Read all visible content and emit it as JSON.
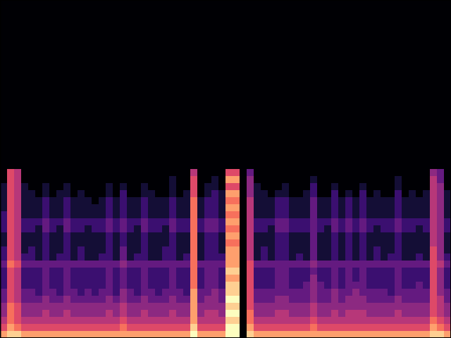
{
  "chart_data": {
    "type": "heatmap",
    "color": "magma",
    "tick_labels": false,
    "xlim": [
      0,
      64
    ],
    "ylim": [
      0,
      48
    ],
    "zlim": [
      0,
      10
    ],
    "x": [
      0,
      1,
      2,
      3,
      4,
      5,
      6,
      7,
      8,
      9,
      10,
      11,
      12,
      13,
      14,
      15,
      16,
      17,
      18,
      19,
      20,
      21,
      22,
      23,
      24,
      25,
      26,
      27,
      28,
      29,
      30,
      31,
      32,
      33,
      34,
      35,
      36,
      37,
      38,
      39,
      40,
      41,
      42,
      43,
      44,
      45,
      46,
      47,
      48,
      49,
      50,
      51,
      52,
      53,
      54,
      55,
      56,
      57,
      58,
      59,
      60,
      61,
      62,
      63
    ],
    "y": [
      23,
      22,
      21,
      20,
      19,
      18,
      17,
      16,
      15,
      14,
      13,
      12,
      11,
      10,
      9,
      8,
      7,
      6,
      5,
      4,
      3,
      2,
      1,
      0
    ],
    "cells": [
      [
        0,
        6,
        5,
        0,
        0,
        0,
        0,
        0,
        0,
        0,
        0,
        0,
        0,
        0,
        0,
        0,
        0,
        0,
        0,
        0,
        0,
        0,
        0,
        0,
        0,
        0,
        0,
        5,
        0,
        0,
        0,
        0,
        6,
        6,
        0,
        3,
        0,
        0,
        0,
        0,
        0,
        0,
        0,
        0,
        0,
        0,
        0,
        0,
        0,
        0,
        0,
        0,
        0,
        0,
        0,
        0,
        0,
        0,
        0,
        0,
        0,
        4,
        3,
        0
      ],
      [
        0,
        6,
        5,
        0,
        0,
        0,
        0,
        0,
        0,
        0,
        0,
        0,
        0,
        0,
        0,
        0,
        0,
        0,
        0,
        0,
        0,
        0,
        0,
        0,
        1,
        0,
        0,
        6,
        0,
        0,
        1,
        0,
        8,
        8,
        0,
        4,
        0,
        0,
        0,
        0,
        0,
        0,
        0,
        0,
        1,
        0,
        0,
        0,
        0,
        0,
        0,
        0,
        0,
        0,
        0,
        0,
        1,
        0,
        0,
        0,
        0,
        5,
        3,
        0
      ],
      [
        1,
        6,
        5,
        1,
        0,
        0,
        1,
        0,
        0,
        1,
        0,
        0,
        0,
        0,
        0,
        1,
        0,
        1,
        0,
        0,
        1,
        0,
        0,
        0,
        1,
        0,
        0,
        6,
        0,
        1,
        1,
        0,
        6,
        6,
        0,
        4,
        1,
        0,
        0,
        0,
        1,
        0,
        0,
        0,
        2,
        0,
        0,
        1,
        0,
        0,
        0,
        1,
        0,
        0,
        0,
        0,
        1,
        0,
        0,
        0,
        0,
        5,
        4,
        0
      ],
      [
        1,
        6,
        5,
        1,
        1,
        0,
        1,
        0,
        1,
        1,
        0,
        1,
        0,
        0,
        0,
        1,
        0,
        2,
        0,
        0,
        1,
        1,
        0,
        0,
        1,
        0,
        1,
        6,
        0,
        1,
        2,
        1,
        8,
        8,
        0,
        4,
        1,
        1,
        0,
        1,
        1,
        0,
        0,
        1,
        2,
        0,
        0,
        2,
        0,
        1,
        0,
        2,
        0,
        1,
        0,
        0,
        2,
        0,
        1,
        0,
        1,
        5,
        4,
        1
      ],
      [
        1,
        6,
        5,
        1,
        1,
        1,
        2,
        1,
        1,
        2,
        1,
        1,
        1,
        0,
        1,
        2,
        1,
        2,
        1,
        1,
        2,
        1,
        1,
        1,
        2,
        1,
        1,
        7,
        1,
        2,
        2,
        1,
        7,
        7,
        0,
        5,
        1,
        1,
        1,
        2,
        2,
        1,
        1,
        1,
        3,
        1,
        1,
        2,
        1,
        2,
        1,
        2,
        1,
        1,
        1,
        1,
        2,
        1,
        1,
        1,
        1,
        5,
        4,
        1
      ],
      [
        1,
        6,
        5,
        1,
        1,
        1,
        2,
        1,
        1,
        2,
        1,
        1,
        1,
        1,
        1,
        2,
        1,
        2,
        1,
        1,
        2,
        1,
        1,
        1,
        2,
        1,
        1,
        7,
        1,
        2,
        2,
        1,
        8,
        8,
        0,
        5,
        1,
        1,
        1,
        2,
        2,
        1,
        1,
        1,
        3,
        1,
        1,
        2,
        1,
        2,
        1,
        2,
        1,
        1,
        1,
        1,
        2,
        1,
        1,
        1,
        1,
        5,
        4,
        1
      ],
      [
        2,
        6,
        5,
        1,
        1,
        1,
        2,
        1,
        1,
        2,
        1,
        1,
        1,
        1,
        1,
        2,
        1,
        2,
        1,
        1,
        2,
        1,
        1,
        1,
        2,
        1,
        1,
        7,
        1,
        2,
        2,
        1,
        7,
        7,
        0,
        5,
        1,
        1,
        1,
        2,
        2,
        1,
        1,
        1,
        3,
        1,
        1,
        2,
        1,
        2,
        1,
        2,
        1,
        1,
        1,
        1,
        2,
        1,
        1,
        1,
        1,
        5,
        4,
        1
      ],
      [
        2,
        6,
        5,
        2,
        2,
        2,
        3,
        2,
        2,
        3,
        2,
        2,
        2,
        2,
        2,
        3,
        2,
        3,
        2,
        2,
        3,
        2,
        2,
        2,
        3,
        2,
        2,
        7,
        2,
        3,
        3,
        2,
        8,
        8,
        0,
        5,
        2,
        2,
        2,
        3,
        3,
        2,
        2,
        2,
        3,
        2,
        2,
        3,
        2,
        3,
        2,
        3,
        2,
        2,
        2,
        2,
        3,
        2,
        2,
        2,
        2,
        5,
        4,
        2
      ],
      [
        2,
        6,
        5,
        2,
        2,
        1,
        3,
        2,
        1,
        3,
        2,
        2,
        1,
        2,
        2,
        3,
        2,
        3,
        2,
        1,
        3,
        2,
        2,
        1,
        3,
        2,
        2,
        7,
        2,
        3,
        3,
        2,
        7,
        7,
        0,
        5,
        2,
        2,
        1,
        3,
        3,
        2,
        2,
        2,
        3,
        2,
        1,
        3,
        2,
        3,
        2,
        3,
        2,
        1,
        2,
        2,
        3,
        2,
        2,
        1,
        2,
        5,
        4,
        2
      ],
      [
        1,
        6,
        5,
        1,
        1,
        1,
        2,
        1,
        1,
        2,
        1,
        1,
        1,
        1,
        1,
        2,
        1,
        2,
        1,
        1,
        2,
        1,
        1,
        1,
        2,
        1,
        1,
        7,
        1,
        2,
        2,
        1,
        8,
        8,
        0,
        5,
        1,
        1,
        1,
        2,
        2,
        1,
        1,
        1,
        3,
        1,
        1,
        2,
        1,
        2,
        1,
        2,
        1,
        1,
        1,
        1,
        2,
        1,
        1,
        1,
        1,
        5,
        4,
        1
      ],
      [
        1,
        6,
        5,
        1,
        1,
        1,
        2,
        1,
        1,
        2,
        1,
        1,
        1,
        1,
        1,
        2,
        1,
        2,
        1,
        1,
        2,
        1,
        1,
        1,
        2,
        1,
        1,
        7,
        1,
        2,
        2,
        1,
        7,
        7,
        0,
        5,
        1,
        1,
        1,
        2,
        2,
        1,
        1,
        1,
        3,
        1,
        1,
        2,
        1,
        2,
        1,
        2,
        1,
        1,
        1,
        1,
        2,
        1,
        1,
        1,
        1,
        5,
        4,
        1
      ],
      [
        2,
        6,
        5,
        1,
        2,
        1,
        2,
        1,
        1,
        2,
        1,
        2,
        1,
        1,
        1,
        2,
        1,
        3,
        1,
        1,
        2,
        1,
        1,
        2,
        2,
        1,
        1,
        7,
        1,
        2,
        2,
        1,
        8,
        8,
        0,
        5,
        1,
        2,
        1,
        2,
        2,
        1,
        1,
        1,
        3,
        1,
        1,
        2,
        1,
        2,
        1,
        2,
        1,
        2,
        1,
        1,
        2,
        1,
        1,
        1,
        1,
        6,
        4,
        1
      ],
      [
        2,
        6,
        5,
        2,
        2,
        1,
        2,
        1,
        2,
        2,
        1,
        2,
        1,
        1,
        2,
        2,
        1,
        3,
        1,
        2,
        2,
        1,
        1,
        2,
        2,
        1,
        2,
        7,
        1,
        2,
        2,
        2,
        8,
        8,
        0,
        5,
        1,
        2,
        1,
        2,
        2,
        1,
        2,
        1,
        3,
        1,
        1,
        2,
        1,
        2,
        1,
        2,
        1,
        2,
        1,
        2,
        2,
        1,
        1,
        2,
        1,
        6,
        4,
        2
      ],
      [
        3,
        7,
        6,
        3,
        3,
        3,
        3,
        3,
        3,
        3,
        3,
        3,
        3,
        3,
        3,
        3,
        3,
        4,
        3,
        3,
        3,
        3,
        3,
        3,
        3,
        3,
        3,
        7,
        3,
        3,
        3,
        3,
        8,
        8,
        0,
        6,
        3,
        3,
        3,
        3,
        3,
        3,
        3,
        3,
        4,
        3,
        3,
        3,
        3,
        3,
        3,
        3,
        3,
        3,
        3,
        3,
        3,
        3,
        3,
        3,
        3,
        6,
        5,
        3
      ],
      [
        2,
        6,
        5,
        2,
        2,
        2,
        3,
        2,
        2,
        3,
        2,
        2,
        2,
        2,
        2,
        3,
        2,
        3,
        2,
        2,
        3,
        2,
        2,
        2,
        3,
        2,
        2,
        7,
        2,
        3,
        3,
        2,
        9,
        9,
        0,
        6,
        2,
        2,
        2,
        3,
        3,
        2,
        2,
        2,
        3,
        2,
        2,
        3,
        2,
        3,
        2,
        3,
        2,
        2,
        2,
        2,
        3,
        2,
        2,
        2,
        2,
        6,
        4,
        2
      ],
      [
        2,
        6,
        5,
        2,
        2,
        2,
        3,
        2,
        2,
        3,
        2,
        2,
        2,
        2,
        2,
        3,
        2,
        3,
        2,
        2,
        3,
        2,
        2,
        2,
        3,
        2,
        2,
        7,
        2,
        3,
        3,
        2,
        8,
        8,
        0,
        6,
        2,
        2,
        2,
        3,
        3,
        2,
        2,
        2,
        4,
        2,
        2,
        3,
        2,
        3,
        2,
        3,
        2,
        2,
        2,
        2,
        3,
        2,
        2,
        2,
        2,
        6,
        4,
        2
      ],
      [
        2,
        6,
        5,
        2,
        2,
        2,
        3,
        2,
        2,
        3,
        2,
        2,
        2,
        2,
        2,
        3,
        2,
        3,
        2,
        2,
        3,
        2,
        2,
        2,
        3,
        2,
        2,
        7,
        2,
        3,
        3,
        2,
        9,
        9,
        0,
        6,
        2,
        2,
        2,
        3,
        3,
        2,
        2,
        3,
        4,
        3,
        2,
        3,
        2,
        3,
        3,
        3,
        2,
        2,
        2,
        2,
        3,
        2,
        2,
        3,
        2,
        6,
        4,
        2
      ],
      [
        3,
        6,
        5,
        3,
        3,
        2,
        3,
        3,
        2,
        3,
        3,
        2,
        3,
        2,
        3,
        3,
        2,
        4,
        3,
        2,
        3,
        3,
        2,
        3,
        3,
        3,
        2,
        8,
        3,
        3,
        4,
        3,
        9,
        9,
        0,
        6,
        3,
        3,
        3,
        3,
        3,
        3,
        3,
        3,
        4,
        3,
        3,
        4,
        3,
        3,
        4,
        3,
        3,
        3,
        3,
        2,
        3,
        3,
        3,
        3,
        3,
        6,
        4,
        3
      ],
      [
        3,
        6,
        5,
        3,
        3,
        3,
        4,
        3,
        3,
        4,
        3,
        3,
        3,
        3,
        3,
        4,
        3,
        4,
        3,
        3,
        4,
        3,
        3,
        3,
        4,
        3,
        3,
        8,
        3,
        4,
        4,
        3,
        10,
        10,
        0,
        6,
        3,
        3,
        3,
        4,
        4,
        3,
        3,
        3,
        4,
        3,
        3,
        4,
        3,
        4,
        4,
        4,
        3,
        3,
        3,
        3,
        4,
        3,
        3,
        3,
        3,
        6,
        5,
        3
      ],
      [
        4,
        7,
        6,
        4,
        4,
        4,
        4,
        4,
        4,
        4,
        4,
        4,
        4,
        4,
        4,
        4,
        4,
        5,
        4,
        4,
        4,
        4,
        4,
        4,
        4,
        4,
        4,
        8,
        4,
        4,
        4,
        4,
        9,
        9,
        0,
        6,
        4,
        4,
        4,
        4,
        4,
        4,
        4,
        4,
        5,
        4,
        4,
        4,
        4,
        4,
        4,
        4,
        4,
        4,
        4,
        4,
        4,
        4,
        4,
        4,
        4,
        6,
        5,
        4
      ],
      [
        4,
        7,
        6,
        4,
        4,
        4,
        5,
        4,
        4,
        5,
        4,
        4,
        4,
        4,
        4,
        5,
        4,
        5,
        4,
        4,
        5,
        4,
        4,
        4,
        5,
        4,
        4,
        8,
        4,
        5,
        5,
        4,
        10,
        10,
        0,
        7,
        4,
        4,
        4,
        5,
        5,
        4,
        4,
        4,
        5,
        4,
        4,
        5,
        4,
        5,
        5,
        5,
        4,
        4,
        4,
        4,
        5,
        4,
        4,
        4,
        4,
        6,
        5,
        4
      ],
      [
        5,
        7,
        6,
        5,
        5,
        5,
        5,
        5,
        5,
        5,
        5,
        5,
        5,
        5,
        5,
        5,
        5,
        6,
        5,
        5,
        5,
        5,
        5,
        5,
        5,
        5,
        5,
        8,
        5,
        5,
        5,
        5,
        9,
        9,
        0,
        7,
        5,
        5,
        5,
        5,
        5,
        5,
        5,
        5,
        6,
        5,
        5,
        5,
        5,
        5,
        5,
        5,
        5,
        5,
        5,
        5,
        5,
        5,
        5,
        5,
        5,
        7,
        6,
        5
      ],
      [
        6,
        8,
        7,
        6,
        6,
        6,
        6,
        6,
        6,
        6,
        6,
        6,
        6,
        6,
        6,
        6,
        6,
        7,
        6,
        6,
        6,
        6,
        6,
        6,
        6,
        6,
        6,
        9,
        6,
        6,
        6,
        6,
        10,
        10,
        0,
        8,
        6,
        6,
        6,
        6,
        6,
        6,
        6,
        6,
        7,
        6,
        6,
        6,
        6,
        6,
        6,
        6,
        6,
        6,
        6,
        6,
        6,
        6,
        6,
        6,
        6,
        8,
        7,
        6
      ],
      [
        8,
        9,
        9,
        8,
        8,
        8,
        8,
        8,
        8,
        8,
        8,
        8,
        8,
        8,
        8,
        8,
        8,
        8,
        8,
        8,
        8,
        8,
        8,
        8,
        8,
        8,
        8,
        10,
        8,
        8,
        8,
        8,
        10,
        10,
        0,
        9,
        8,
        8,
        8,
        8,
        8,
        8,
        8,
        8,
        8,
        8,
        8,
        8,
        8,
        8,
        8,
        8,
        8,
        8,
        8,
        8,
        8,
        8,
        8,
        8,
        8,
        9,
        9,
        8
      ]
    ]
  }
}
